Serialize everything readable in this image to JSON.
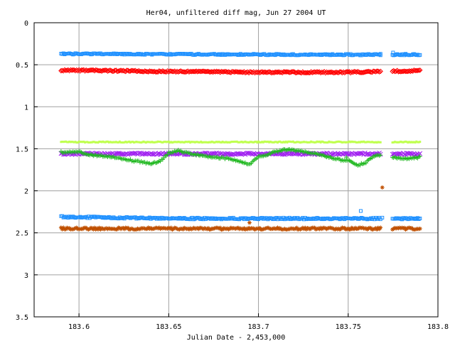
{
  "chart_data": {
    "type": "scatter",
    "title": "Her04, unfiltered diff mag, Jun 27 2004 UT",
    "xlabel": "Julian Date - 2,453,000",
    "ylabel": "",
    "xlim": [
      183.575,
      183.8
    ],
    "ylim": [
      0,
      3.5
    ],
    "y_inverted": true,
    "grid": true,
    "legend": "none",
    "x_ticks": [
      183.6,
      183.65,
      183.7,
      183.75,
      183.8
    ],
    "x_tick_labels": [
      "183.6",
      "183.65",
      "183.7",
      "183.75",
      "183.8"
    ],
    "y_ticks": [
      0,
      0.5,
      1,
      1.5,
      2,
      2.5,
      3,
      3.5
    ],
    "y_tick_labels": [
      "0",
      "0.5",
      "1",
      "1.5",
      "2",
      "2.5",
      "3",
      "3.5"
    ],
    "x_range_observed": [
      183.59,
      183.79
    ],
    "gap": [
      183.7685,
      183.7745
    ],
    "series": [
      {
        "marker": "square",
        "color": "#1e90ff",
        "base": 0.375,
        "trend": [
          [
            183.59,
            0.37
          ],
          [
            183.65,
            0.375
          ],
          [
            183.7,
            0.378
          ],
          [
            183.75,
            0.38
          ],
          [
            183.79,
            0.38
          ]
        ],
        "noise": 0.008,
        "outliers": [
          [
            183.768,
            0.37
          ],
          [
            183.775,
            0.355
          ],
          [
            183.782,
            0.37
          ]
        ]
      },
      {
        "marker": "diamond",
        "color": "#ff0000",
        "base": 0.58,
        "trend": [
          [
            183.59,
            0.565
          ],
          [
            183.65,
            0.58
          ],
          [
            183.7,
            0.59
          ],
          [
            183.75,
            0.59
          ],
          [
            183.79,
            0.57
          ]
        ],
        "noise": 0.008,
        "outliers": []
      },
      {
        "marker": "dot",
        "color": "#c0ff50",
        "base": 1.42,
        "trend": [
          [
            183.59,
            1.42
          ],
          [
            183.79,
            1.42
          ]
        ],
        "noise": 0.006,
        "outliers": []
      },
      {
        "marker": "x",
        "color": "#a020f0",
        "base": 1.56,
        "trend": [
          [
            183.59,
            1.56
          ],
          [
            183.79,
            1.56
          ]
        ],
        "noise": 0.01,
        "outliers": []
      },
      {
        "marker": "plus",
        "color": "#20b820",
        "base": 1.58,
        "trend": [
          [
            183.59,
            1.54
          ],
          [
            183.6,
            1.53
          ],
          [
            183.605,
            1.57
          ],
          [
            183.62,
            1.6
          ],
          [
            183.635,
            1.66
          ],
          [
            183.64,
            1.68
          ],
          [
            183.645,
            1.65
          ],
          [
            183.65,
            1.55
          ],
          [
            183.655,
            1.52
          ],
          [
            183.66,
            1.55
          ],
          [
            183.675,
            1.6
          ],
          [
            183.685,
            1.62
          ],
          [
            183.69,
            1.65
          ],
          [
            183.695,
            1.68
          ],
          [
            183.7,
            1.6
          ],
          [
            183.71,
            1.53
          ],
          [
            183.715,
            1.51
          ],
          [
            183.72,
            1.52
          ],
          [
            183.73,
            1.55
          ],
          [
            183.74,
            1.6
          ],
          [
            183.745,
            1.63
          ],
          [
            183.75,
            1.64
          ],
          [
            183.755,
            1.7
          ],
          [
            183.76,
            1.66
          ],
          [
            183.765,
            1.58
          ],
          [
            183.768,
            1.57
          ],
          [
            183.775,
            1.6
          ],
          [
            183.78,
            1.62
          ],
          [
            183.79,
            1.6
          ]
        ],
        "noise": 0.01,
        "outliers": [
          [
            183.749,
            1.6
          ]
        ]
      },
      {
        "marker": "square",
        "color": "#1e90ff",
        "base": 2.32,
        "trend": [
          [
            183.59,
            2.31
          ],
          [
            183.65,
            2.33
          ],
          [
            183.7,
            2.33
          ],
          [
            183.75,
            2.33
          ],
          [
            183.79,
            2.33
          ]
        ],
        "noise": 0.01,
        "outliers": [
          [
            183.757,
            2.24
          ],
          [
            183.769,
            2.32
          ]
        ]
      },
      {
        "marker": "star",
        "color": "#c05000",
        "base": 2.45,
        "trend": [
          [
            183.59,
            2.45
          ],
          [
            183.79,
            2.45
          ]
        ],
        "noise": 0.012,
        "outliers": [
          [
            183.769,
            1.96
          ],
          [
            183.695,
            2.38
          ]
        ]
      }
    ]
  }
}
